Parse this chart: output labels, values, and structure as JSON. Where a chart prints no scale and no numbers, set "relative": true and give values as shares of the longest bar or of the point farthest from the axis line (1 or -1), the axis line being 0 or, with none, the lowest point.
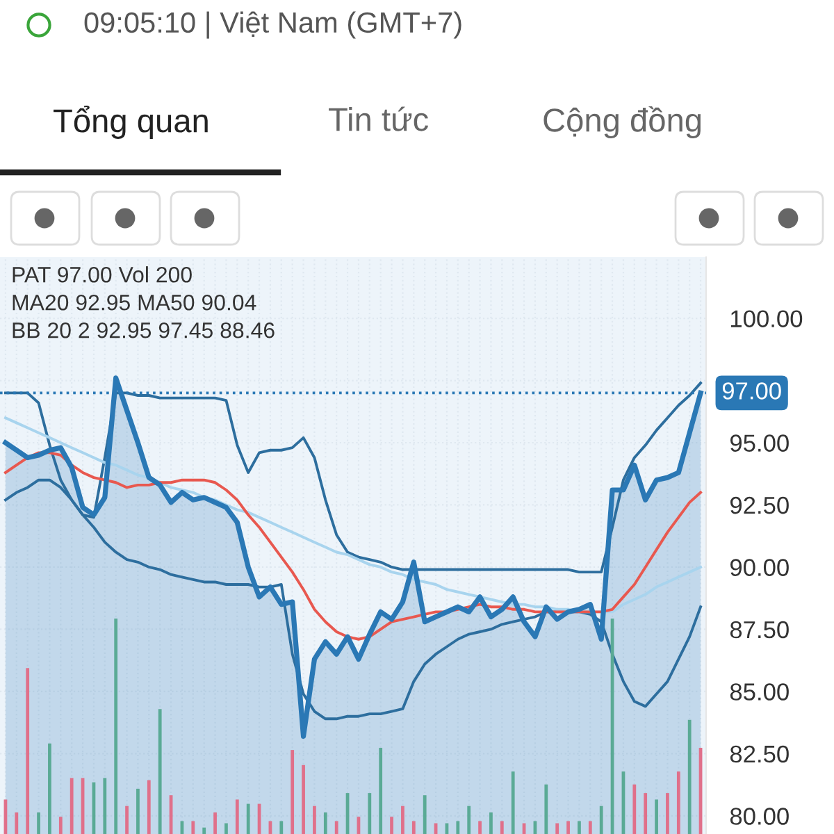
{
  "chart_data": [
    {
      "type": "line",
      "title": "09:05:10 | Việt Nam (GMT+7)",
      "annotations": [
        "Tổng quan",
        "Tin tức",
        "Cộng đồng",
        "PAT 97.00 Vol 200",
        "MA20 92.95 MA50 90.04",
        "BB 20 2 92.95 97.45 88.46"
      ],
      "categories": [
        null,
        null,
        null,
        null,
        null,
        null,
        null,
        null,
        null,
        null,
        null,
        null,
        null,
        null,
        null,
        null,
        null,
        null,
        null,
        null,
        null,
        null,
        null,
        null,
        null,
        null,
        null,
        null,
        null,
        null,
        null,
        null,
        null,
        null,
        null,
        null,
        null,
        null,
        null,
        null,
        null,
        null,
        null,
        null,
        null,
        null,
        null,
        null,
        null,
        null,
        null,
        null,
        null,
        null,
        null,
        null,
        null,
        null,
        null,
        null,
        null,
        null,
        null,
        null
      ],
      "series": [
        {
          "type": "area",
          "color": "#2a78b5",
          "values": [
            95.0,
            94.7,
            94.4,
            94.5,
            94.7,
            94.8,
            94.0,
            92.4,
            92.1,
            92.8,
            97.6,
            96.3,
            95.0,
            93.6,
            93.3,
            92.6,
            93.0,
            92.7,
            92.8,
            92.6,
            92.4,
            91.8,
            90.0,
            88.8,
            89.2,
            88.5,
            88.6,
            83.2,
            86.3,
            87.0,
            86.5,
            87.2,
            86.3,
            87.3,
            88.2,
            87.9,
            88.6,
            90.2,
            87.8,
            88.0,
            88.2,
            88.4,
            88.2,
            88.8,
            88.0,
            88.3,
            88.8,
            87.8,
            87.2,
            88.4,
            87.9,
            88.2,
            88.3,
            88.5,
            87.1,
            93.1,
            93.1,
            94.1,
            92.7,
            93.5,
            93.6,
            93.8,
            95.4,
            97.0
          ]
        },
        {
          "type": "line",
          "color": "#e8584f",
          "values": [
            93.8,
            94.1,
            94.4,
            94.6,
            94.6,
            94.5,
            94.1,
            93.8,
            93.6,
            93.5,
            93.4,
            93.2,
            93.3,
            93.3,
            93.4,
            93.4,
            93.5,
            93.5,
            93.5,
            93.4,
            93.1,
            92.7,
            92.1,
            91.6,
            91.0,
            90.4,
            89.8,
            89.1,
            88.3,
            87.8,
            87.4,
            87.2,
            87.1,
            87.2,
            87.5,
            87.8,
            87.9,
            88.0,
            88.1,
            88.2,
            88.2,
            88.3,
            88.4,
            88.5,
            88.4,
            88.4,
            88.3,
            88.3,
            88.2,
            88.2,
            88.2,
            88.2,
            88.2,
            88.2,
            88.2,
            88.3,
            88.8,
            89.3,
            90.0,
            90.7,
            91.4,
            92.0,
            92.6,
            93.0
          ]
        },
        {
          "type": "line",
          "color": "#a8d4ee",
          "values": [
            96.0,
            95.8,
            95.6,
            95.4,
            95.2,
            95.0,
            94.8,
            94.6,
            94.4,
            94.2,
            94.1,
            93.9,
            93.7,
            93.6,
            93.4,
            93.2,
            93.1,
            93.0,
            92.8,
            92.7,
            92.5,
            92.3,
            92.2,
            92.0,
            91.8,
            91.6,
            91.4,
            91.2,
            91.0,
            90.8,
            90.6,
            90.5,
            90.3,
            90.1,
            90.0,
            89.8,
            89.7,
            89.5,
            89.4,
            89.3,
            89.1,
            89.0,
            88.9,
            88.8,
            88.7,
            88.6,
            88.5,
            88.5,
            88.4,
            88.4,
            88.3,
            88.3,
            88.2,
            88.2,
            88.2,
            88.2,
            88.5,
            88.7,
            88.9,
            89.2,
            89.4,
            89.6,
            89.8,
            90.0
          ]
        },
        {
          "type": "line",
          "color": "#2d6e9e",
          "values": [
            97.0,
            97.0,
            97.0,
            96.6,
            94.9,
            93.5,
            92.7,
            92.1,
            92.0,
            94.4,
            97.0,
            97.0,
            96.9,
            96.9,
            96.8,
            96.8,
            96.8,
            96.8,
            96.8,
            96.8,
            96.7,
            94.9,
            93.8,
            94.6,
            94.7,
            94.7,
            94.8,
            95.2,
            94.4,
            92.7,
            91.3,
            90.6,
            90.4,
            90.3,
            90.2,
            90.0,
            89.9,
            89.9,
            89.9,
            89.9,
            89.9,
            89.9,
            89.9,
            89.9,
            89.9,
            89.9,
            89.9,
            89.9,
            89.9,
            89.9,
            89.9,
            89.9,
            89.8,
            89.8,
            89.8,
            91.6,
            93.5,
            94.4,
            94.9,
            95.5,
            96.0,
            96.5,
            96.9,
            97.4
          ]
        },
        {
          "type": "line",
          "color": "#2d6e9e",
          "values": [
            92.7,
            93.0,
            93.2,
            93.5,
            93.5,
            93.2,
            92.7,
            92.1,
            91.6,
            91.0,
            90.6,
            90.3,
            90.2,
            90.0,
            89.9,
            89.7,
            89.6,
            89.5,
            89.4,
            89.4,
            89.3,
            89.3,
            89.3,
            89.2,
            89.2,
            89.3,
            86.5,
            84.9,
            84.2,
            83.9,
            83.9,
            84.0,
            84.0,
            84.1,
            84.1,
            84.2,
            84.3,
            85.4,
            86.1,
            86.5,
            86.8,
            87.1,
            87.3,
            87.4,
            87.5,
            87.7,
            87.8,
            87.9,
            88.0,
            88.2,
            88.2,
            88.2,
            88.2,
            88.1,
            87.8,
            86.5,
            85.4,
            84.6,
            84.4,
            84.9,
            85.4,
            86.3,
            87.2,
            88.4
          ]
        }
      ],
      "ylim": [
        79.27,
        102.46
      ],
      "yticks": [
        {
          "value": 80,
          "label": "80.00"
        },
        {
          "value": 82.5,
          "label": "82.50"
        },
        {
          "value": 85,
          "label": "85.00"
        },
        {
          "value": 87.5,
          "label": "87.50"
        },
        {
          "value": 90,
          "label": "90.00"
        },
        {
          "value": 92.5,
          "label": "92.50"
        },
        {
          "value": 95,
          "label": "95.00"
        },
        {
          "value": 97.5,
          "label": null
        },
        {
          "value": 100,
          "label": "100.00"
        }
      ],
      "tick_labels": "y",
      "ref_lines": [
        {
          "axis": "y",
          "value": 97.0,
          "label": "97.00",
          "color": "#2a78b5",
          "line_style": "dotted"
        }
      ],
      "grid": true
    },
    {
      "type": "bar",
      "relative": true,
      "categories": [
        null,
        null,
        null,
        null,
        null,
        null,
        null,
        null,
        null,
        null,
        null,
        null,
        null,
        null,
        null,
        null,
        null,
        null,
        null,
        null,
        null,
        null,
        null,
        null,
        null,
        null,
        null,
        null,
        null,
        null,
        null,
        null,
        null,
        null,
        null,
        null,
        null,
        null,
        null,
        null,
        null,
        null,
        null,
        null,
        null,
        null,
        null,
        null,
        null,
        null,
        null,
        null,
        null,
        null,
        null,
        null,
        null,
        null,
        null,
        null,
        null,
        null,
        null,
        null
      ],
      "values": [
        0.16,
        0.1,
        0.77,
        0.1,
        0.42,
        0.08,
        0.26,
        0.26,
        0.24,
        0.26,
        1,
        0.13,
        0.21,
        0.25,
        0.58,
        0.18,
        0.06,
        0.06,
        0.03,
        0.1,
        0.05,
        0.16,
        0.14,
        0.14,
        0.06,
        0.06,
        0.39,
        0.32,
        0.13,
        0.1,
        0.06,
        0.19,
        0.08,
        0.19,
        0.4,
        0.08,
        0.13,
        0.06,
        0.18,
        0.05,
        0.05,
        0.06,
        0.13,
        0.06,
        0.1,
        0.06,
        0.29,
        0.05,
        0.06,
        0.23,
        0.05,
        0.06,
        0.06,
        0.06,
        0.13,
        1,
        0.29,
        0.23,
        0.19,
        0.16,
        0.19,
        0.29,
        0.53,
        0.4
      ],
      "colors": [
        "#e0708a",
        "#e0708a",
        "#e0708a",
        "#5aaa95",
        "#5aaa95",
        "#e0708a",
        "#e0708a",
        "#e0708a",
        "#5aaa95",
        "#5aaa95",
        "#5aaa95",
        "#e0708a",
        "#5aaa95",
        "#e0708a",
        "#5aaa95",
        "#e0708a",
        "#5aaa95",
        "#e0708a",
        "#5aaa95",
        "#e0708a",
        "#5aaa95",
        "#e0708a",
        "#5aaa95",
        "#e0708a",
        "#e0708a",
        "#5aaa95",
        "#e0708a",
        "#e0708a",
        "#e0708a",
        "#5aaa95",
        "#e0708a",
        "#5aaa95",
        "#e0708a",
        "#5aaa95",
        "#5aaa95",
        "#e0708a",
        "#e0708a",
        "#e0708a",
        "#5aaa95",
        "#e0708a",
        "#5aaa95",
        "#5aaa95",
        "#5aaa95",
        "#e0708a",
        "#5aaa95",
        "#e0708a",
        "#5aaa95",
        "#e0708a",
        "#5aaa95",
        "#5aaa95",
        "#e0708a",
        "#e0708a",
        "#5aaa95",
        "#e0708a",
        "#5aaa95",
        "#5aaa95",
        "#5aaa95",
        "#e0708a",
        "#e0708a",
        "#5aaa95",
        "#e0708a",
        "#e0708a",
        "#5aaa95",
        "#e0708a"
      ]
    }
  ]
}
